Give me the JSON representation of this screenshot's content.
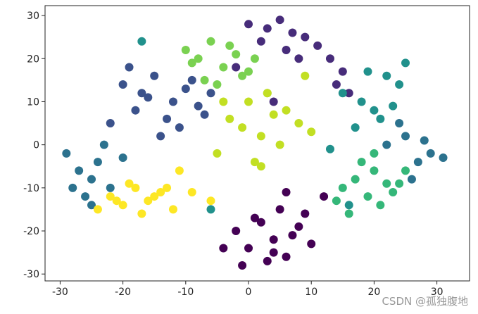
{
  "chart_data": {
    "type": "scatter",
    "xlim": [
      -32.4,
      35.2
    ],
    "ylim": [
      -31.6,
      32.3
    ],
    "xticks": [
      -30,
      -20,
      -10,
      0,
      10,
      20,
      30
    ],
    "yticks": [
      -30,
      -20,
      -10,
      0,
      10,
      20,
      30
    ],
    "series": [
      {
        "color": "#440154",
        "x": [
          -2,
          0,
          2,
          4,
          6,
          8,
          10,
          3,
          5,
          7,
          -1,
          1,
          9,
          12,
          -4,
          6,
          4
        ],
        "y": [
          -20,
          -24,
          -18,
          -22,
          -26,
          -19,
          -23,
          -27,
          -15,
          -21,
          -28,
          -17,
          -16,
          -12,
          -24,
          -11,
          -25
        ]
      },
      {
        "color": "#472c7a",
        "x": [
          0,
          3,
          5,
          7,
          9,
          11,
          13,
          15,
          14,
          2,
          8,
          6,
          16,
          -2,
          4
        ],
        "y": [
          28,
          27,
          29,
          26,
          25,
          23,
          20,
          17,
          14,
          24,
          20,
          22,
          12,
          18,
          10
        ]
      },
      {
        "color": "#3b528b",
        "x": [
          -20,
          -17,
          -15,
          -12,
          -10,
          -8,
          -13,
          -18,
          -22,
          -9,
          -11,
          -14,
          -16,
          -6,
          -19,
          -7
        ],
        "y": [
          14,
          12,
          16,
          10,
          13,
          9,
          6,
          8,
          5,
          15,
          4,
          2,
          11,
          12,
          18,
          7
        ]
      },
      {
        "color": "#2c728e",
        "x": [
          -29,
          -27,
          -25,
          -24,
          -22,
          -26,
          -23,
          -20,
          -28,
          -25,
          22,
          25,
          27,
          29,
          31,
          24,
          28,
          26
        ],
        "y": [
          -2,
          -6,
          -8,
          -4,
          -10,
          -12,
          0,
          -3,
          -10,
          -14,
          0,
          2,
          -4,
          -2,
          -3,
          5,
          1,
          -8
        ]
      },
      {
        "color": "#21918c",
        "x": [
          15,
          18,
          20,
          22,
          24,
          17,
          21,
          19,
          23,
          13,
          -17,
          -6,
          25,
          16
        ],
        "y": [
          12,
          10,
          8,
          16,
          14,
          4,
          6,
          17,
          9,
          -1,
          24,
          -15,
          19,
          -14
        ]
      },
      {
        "color": "#35b779",
        "x": [
          15,
          17,
          19,
          20,
          21,
          22,
          18,
          16,
          23,
          25,
          14,
          20,
          24
        ],
        "y": [
          -10,
          -8,
          -12,
          -6,
          -14,
          -9,
          -4,
          -16,
          -11,
          -6,
          -13,
          -2,
          -9
        ]
      },
      {
        "color": "#7ad151",
        "x": [
          -10,
          -8,
          -6,
          -4,
          -2,
          0,
          -7,
          -3,
          -9,
          1,
          -5,
          3,
          -1
        ],
        "y": [
          22,
          20,
          24,
          18,
          21,
          17,
          15,
          23,
          19,
          20,
          14,
          12,
          16
        ]
      },
      {
        "color": "#c2df23",
        "x": [
          -3,
          -1,
          0,
          2,
          4,
          6,
          8,
          -5,
          1,
          3,
          5,
          9,
          -4,
          2,
          10
        ],
        "y": [
          6,
          4,
          10,
          2,
          7,
          8,
          5,
          -2,
          -4,
          12,
          0,
          16,
          10,
          -5,
          3
        ]
      },
      {
        "color": "#fde725",
        "x": [
          -22,
          -20,
          -18,
          -16,
          -14,
          -12,
          -19,
          -17,
          -15,
          -21,
          -13,
          -11,
          -9,
          -24,
          -6
        ],
        "y": [
          -12,
          -14,
          -10,
          -13,
          -11,
          -15,
          -9,
          -16,
          -12,
          -13,
          -10,
          -6,
          -11,
          -15,
          -13
        ]
      }
    ]
  },
  "watermark": "CSDN @孤独腹地"
}
